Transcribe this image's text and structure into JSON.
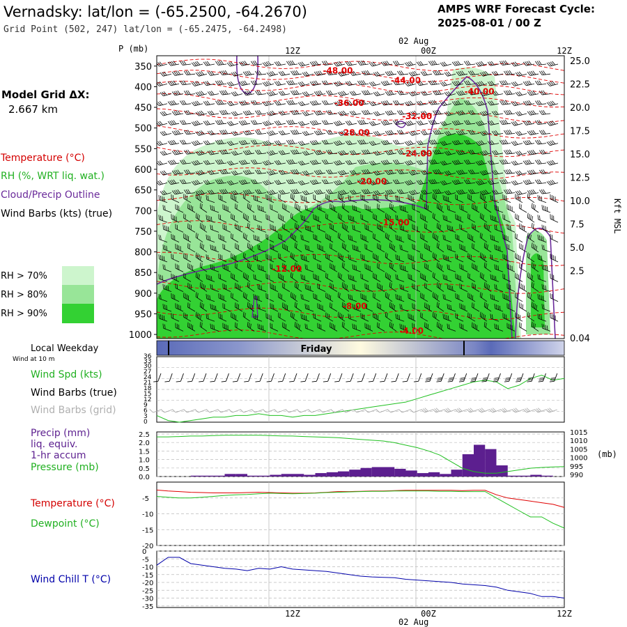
{
  "header": {
    "title": "Vernadsky:  lat/lon = (-65.2500, -64.2670)",
    "subtitle": "Grid Point (502, 247) lat/lon = (-65.2475, -64.2498)",
    "cycle_label": "AMPS WRF Forecast Cycle:",
    "cycle_value": "2025-08-01 / 00  Z"
  },
  "left_panel": {
    "model_grid_label": "Model Grid ΔX:",
    "model_grid_value": "2.667 km",
    "legend": [
      {
        "text": "Temperature (°C)",
        "color": "#d40000"
      },
      {
        "text": "RH (%, WRT liq. wat.)",
        "color": "#20b020"
      },
      {
        "text": "Cloud/Precip Outline",
        "color": "#6a2a9a"
      },
      {
        "text": "Wind Barbs (kts) (true)",
        "color": "#000000"
      }
    ],
    "rh_legend": [
      {
        "text": "RH > 70%",
        "color": "#cdf5cd"
      },
      {
        "text": "RH > 80%",
        "color": "#98e598"
      },
      {
        "text": "RH > 90%",
        "color": "#33d133"
      }
    ]
  },
  "time_axis": {
    "top_date": "02 Aug",
    "bottom_date": "02 Aug",
    "ticks": [
      "12Z",
      "00Z",
      "12Z"
    ],
    "day_label": "Friday",
    "local_weekday_label": "Local Weekday",
    "wind_at_label": "Wind at 10 m"
  },
  "colors": {
    "temperature": "#e00000",
    "rh70": "#cdf5cd",
    "rh80": "#98e598",
    "rh90": "#33d133",
    "cloud": "#6a2a9a",
    "wind": "#000000",
    "precip": "#5c1f8f",
    "pressure": "#20c020",
    "dewpoint": "#20c020",
    "windchill": "#0000aa",
    "grid": "#bbbbbb"
  },
  "panel_labels": {
    "wind": [
      "Wind Spd (kts)",
      "Wind Barbs (true)",
      "Wind Barbs (grid)"
    ],
    "precip": [
      "Precip (mm)",
      "liq. equiv.",
      "1-hr accum",
      "Pressure (mb)"
    ],
    "temp": [
      "Temperature (°C)",
      "Dewpoint (°C)"
    ],
    "windchill": [
      "Wind Chill T (°C)"
    ]
  },
  "chart_data": [
    {
      "type": "heatmap",
      "ylabel": "P (mb)",
      "y2label": "Kft MSL",
      "pressure_ticks": [
        "350",
        "400",
        "450",
        "500",
        "550",
        "600",
        "650",
        "700",
        "750",
        "800",
        "850",
        "900",
        "950",
        "1000"
      ],
      "height_ticks": [
        "25.0",
        "22.5",
        "20.0",
        "17.5",
        "15.0",
        "12.5",
        "10.0",
        "7.5",
        "5.0",
        "2.5",
        "0.04"
      ],
      "temperature_labels": [
        {
          "text": "-48.00",
          "hour": 16,
          "p": 360
        },
        {
          "text": "-44.00",
          "hour": 22,
          "p": 383
        },
        {
          "text": "-40.00",
          "hour": 28.5,
          "p": 410
        },
        {
          "text": "-36.00",
          "hour": 17,
          "p": 438
        },
        {
          "text": "-32.00",
          "hour": 23,
          "p": 470
        },
        {
          "text": "-28.00",
          "hour": 17.5,
          "p": 510
        },
        {
          "text": "-24.00",
          "hour": 23,
          "p": 560
        },
        {
          "text": "-20.00",
          "hour": 19,
          "p": 628
        },
        {
          "text": "-15.00",
          "hour": 21,
          "p": 727
        },
        {
          "text": "-12.00",
          "hour": 11.5,
          "p": 840
        },
        {
          "text": "-8.00",
          "hour": 17.5,
          "p": 930
        },
        {
          "text": "-4.00",
          "hour": 22.5,
          "p": 990
        }
      ]
    },
    {
      "type": "line",
      "ylabel": "Wind Spd (kts)",
      "yticks": [
        "36",
        "33",
        "30",
        "27",
        "24",
        "21",
        "18",
        "15",
        "12",
        "9",
        "6",
        "3",
        "0"
      ],
      "x_hours": [
        0,
        1,
        2,
        3,
        4,
        5,
        6,
        7,
        8,
        9,
        10,
        11,
        12,
        13,
        14,
        15,
        16,
        17,
        18,
        19,
        20,
        21,
        22,
        23,
        24,
        25,
        26,
        27,
        28,
        29,
        30,
        31,
        32,
        33,
        34,
        35,
        36
      ],
      "series": [
        {
          "values": [
            4,
            1,
            0,
            1,
            2,
            3,
            3,
            4,
            4,
            5,
            4,
            4,
            3,
            4,
            4,
            5,
            6,
            7,
            8,
            9,
            10,
            11,
            12,
            14,
            16,
            18,
            20,
            22,
            24,
            25,
            24,
            20,
            22,
            26,
            28,
            25,
            26
          ]
        }
      ]
    },
    {
      "type": "bar",
      "ylabel": "Precip (mm)",
      "y2label": "(mb)",
      "yticks": [
        "2.5",
        "2.0",
        "1.5",
        "1.0",
        "0.5",
        "0.0"
      ],
      "y2ticks": [
        "1015",
        "1010",
        "1005",
        "1000",
        "995",
        "990"
      ],
      "x_hours": [
        0,
        1,
        2,
        3,
        4,
        5,
        6,
        7,
        8,
        9,
        10,
        11,
        12,
        13,
        14,
        15,
        16,
        17,
        18,
        19,
        20,
        21,
        22,
        23,
        24,
        25,
        26,
        27,
        28,
        29,
        30,
        31,
        32,
        33,
        34,
        35,
        36
      ],
      "precip": [
        0,
        0,
        0,
        0.05,
        0.05,
        0.05,
        0.15,
        0.15,
        0.05,
        0.05,
        0.1,
        0.15,
        0.15,
        0.1,
        0.2,
        0.25,
        0.3,
        0.4,
        0.5,
        0.55,
        0.55,
        0.45,
        0.35,
        0.2,
        0.25,
        0.15,
        0.4,
        1.3,
        1.85,
        1.6,
        0.65,
        0.05,
        0.05,
        0.1,
        0.05,
        0,
        0
      ],
      "pressure": [
        1013,
        1013,
        1013.2,
        1013.5,
        1013.5,
        1013.8,
        1014,
        1014,
        1014,
        1014,
        1013.8,
        1013.6,
        1013.5,
        1013.2,
        1013,
        1012.8,
        1012.5,
        1012,
        1011.5,
        1011,
        1010.5,
        1009.5,
        1008,
        1006.5,
        1004.5,
        1002,
        998,
        994,
        992,
        991,
        991,
        992,
        993,
        994,
        994.5,
        994.8,
        995
      ]
    },
    {
      "type": "line",
      "yticks": [
        "-5",
        "-10",
        "-15",
        "-20"
      ],
      "x_hours": [
        0,
        1,
        2,
        3,
        4,
        5,
        6,
        7,
        8,
        9,
        10,
        11,
        12,
        13,
        14,
        15,
        16,
        17,
        18,
        19,
        20,
        21,
        22,
        23,
        24,
        25,
        26,
        27,
        28,
        29,
        30,
        31,
        32,
        33,
        34,
        35,
        36
      ],
      "series": [
        {
          "name": "Temperature",
          "values": [
            -2.5,
            -2.8,
            -3,
            -3.2,
            -3.3,
            -3.4,
            -3.4,
            -3.4,
            -3.3,
            -3.2,
            -3.3,
            -3.4,
            -3.5,
            -3.5,
            -3.4,
            -3.2,
            -3,
            -3,
            -2.9,
            -2.8,
            -2.8,
            -2.7,
            -2.6,
            -2.6,
            -2.6,
            -2.6,
            -2.6,
            -2.7,
            -2.6,
            -2.6,
            -4,
            -5,
            -5.5,
            -6,
            -6.5,
            -7,
            -8
          ]
        },
        {
          "name": "Dewpoint",
          "values": [
            -4.5,
            -4.8,
            -5,
            -5,
            -4.8,
            -4.5,
            -4.2,
            -4,
            -3.9,
            -3.7,
            -3.5,
            -3.6,
            -3.7,
            -3.6,
            -3.5,
            -3.3,
            -3.2,
            -3.1,
            -3,
            -2.9,
            -2.9,
            -2.8,
            -2.8,
            -2.8,
            -2.8,
            -2.9,
            -2.9,
            -3,
            -3,
            -3,
            -5,
            -7,
            -9,
            -11,
            -11,
            -13,
            -14.5
          ]
        }
      ]
    },
    {
      "type": "line",
      "ylabel": "Wind Chill T (°C)",
      "yticks": [
        "0",
        "-5",
        "-10",
        "-15",
        "-20",
        "-25",
        "-30",
        "-35"
      ],
      "x_hours": [
        0,
        1,
        2,
        3,
        4,
        5,
        6,
        7,
        8,
        9,
        10,
        11,
        12,
        13,
        14,
        15,
        16,
        17,
        18,
        19,
        20,
        21,
        22,
        23,
        24,
        25,
        26,
        27,
        28,
        29,
        30,
        31,
        32,
        33,
        34,
        35,
        36
      ],
      "series": [
        {
          "name": "Wind Chill",
          "values": [
            -9,
            -4,
            -4,
            -8,
            -9,
            -10,
            -11,
            -11.5,
            -12.5,
            -11,
            -11.5,
            -10,
            -11.5,
            -12,
            -12.5,
            -13,
            -14,
            -15,
            -16,
            -16.5,
            -16.8,
            -17,
            -18,
            -18.5,
            -19,
            -19.5,
            -20,
            -21,
            -21.5,
            -22,
            -23,
            -25,
            -26,
            -27,
            -29,
            -29,
            -30
          ]
        }
      ]
    }
  ]
}
